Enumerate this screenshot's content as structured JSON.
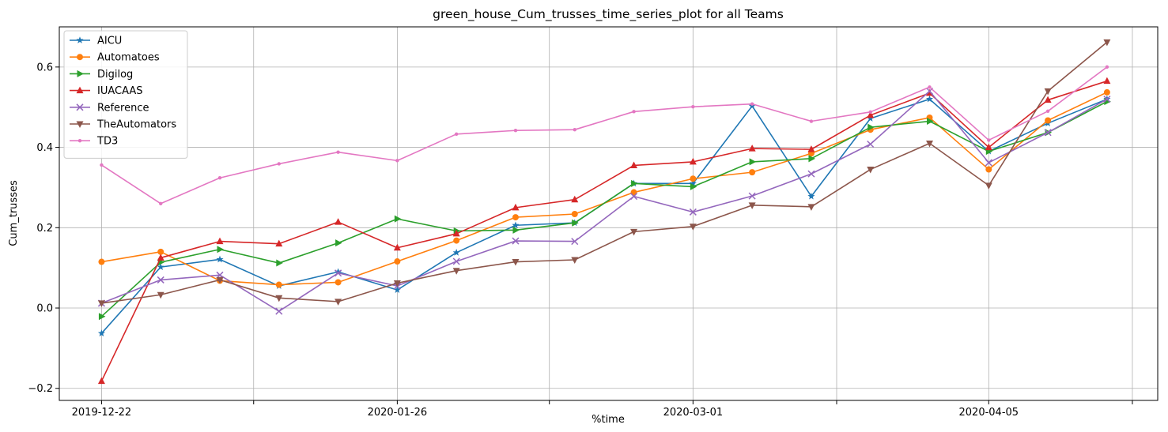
{
  "chart_data": {
    "type": "line",
    "title": "green_house_Cum_trusses_time_series_plot for all Teams",
    "xlabel": "%time",
    "ylabel": "Cum_trusses",
    "ylim": [
      -0.23,
      0.7
    ],
    "yticks": [
      -0.2,
      0.0,
      0.2,
      0.4,
      0.6
    ],
    "ytick_labels": [
      "−0.2",
      "0.0",
      "0.2",
      "0.4",
      "0.6"
    ],
    "x_dates": [
      "2019-12-22",
      "2019-12-29",
      "2020-01-05",
      "2020-01-12",
      "2020-01-19",
      "2020-01-26",
      "2020-02-02",
      "2020-02-09",
      "2020-02-16",
      "2020-02-23",
      "2020-03-01",
      "2020-03-08",
      "2020-03-15",
      "2020-03-22",
      "2020-03-29",
      "2020-04-05",
      "2020-04-12",
      "2020-04-19"
    ],
    "xlim": [
      "2019-12-17",
      "2020-04-25"
    ],
    "xticks": [
      "2019-12-22",
      "2020-01-09",
      "2020-01-26",
      "2020-02-13",
      "2020-03-01",
      "2020-03-18",
      "2020-04-05",
      "2020-04-22"
    ],
    "xtick_labels": [
      "2019-12-22",
      "",
      "2020-01-26",
      "",
      "2020-03-01",
      "",
      "2020-04-05",
      ""
    ],
    "grid": true,
    "legend_position": "top-left",
    "series": [
      {
        "name": "AICU",
        "color": "#1f77b4",
        "marker": "star",
        "values": [
          -0.063,
          0.102,
          0.121,
          0.055,
          0.09,
          0.045,
          0.138,
          0.206,
          0.212,
          0.31,
          0.31,
          0.503,
          0.278,
          0.472,
          0.52,
          0.39,
          0.46,
          0.52
        ]
      },
      {
        "name": "Automatoes",
        "color": "#ff7f0e",
        "marker": "circle",
        "values": [
          0.115,
          0.14,
          0.068,
          0.058,
          0.064,
          0.116,
          0.168,
          0.226,
          0.234,
          0.288,
          0.322,
          0.338,
          0.385,
          0.444,
          0.474,
          0.345,
          0.467,
          0.537
        ]
      },
      {
        "name": "Digilog",
        "color": "#2ca02c",
        "marker": "triangle-right",
        "values": [
          -0.021,
          0.114,
          0.146,
          0.112,
          0.162,
          0.222,
          0.192,
          0.194,
          0.212,
          0.31,
          0.302,
          0.364,
          0.372,
          0.45,
          0.465,
          0.39,
          0.437,
          0.514
        ]
      },
      {
        "name": "IUACAAS",
        "color": "#d62728",
        "marker": "triangle-up",
        "values": [
          -0.182,
          0.125,
          0.166,
          0.16,
          0.214,
          0.15,
          0.185,
          0.25,
          0.27,
          0.355,
          0.364,
          0.397,
          0.395,
          0.48,
          0.535,
          0.4,
          0.518,
          0.565
        ]
      },
      {
        "name": "Reference",
        "color": "#9467bd",
        "marker": "x",
        "values": [
          0.012,
          0.07,
          0.082,
          -0.008,
          0.087,
          0.055,
          0.116,
          0.167,
          0.166,
          0.278,
          0.239,
          0.279,
          0.334,
          0.408,
          0.54,
          0.362,
          0.437,
          0.52
        ]
      },
      {
        "name": "TheAutomators",
        "color": "#8c564b",
        "marker": "triangle-down",
        "values": [
          0.012,
          0.033,
          0.07,
          0.025,
          0.016,
          0.062,
          0.093,
          0.115,
          0.12,
          0.19,
          0.203,
          0.256,
          0.252,
          0.345,
          0.41,
          0.305,
          0.54,
          0.662
        ]
      },
      {
        "name": "TD3",
        "color": "#e377c2",
        "marker": "point",
        "values": [
          0.356,
          0.26,
          0.324,
          0.359,
          0.388,
          0.367,
          0.433,
          0.442,
          0.444,
          0.489,
          0.501,
          0.508,
          0.465,
          0.488,
          0.55,
          0.418,
          0.49,
          0.6
        ]
      }
    ]
  }
}
